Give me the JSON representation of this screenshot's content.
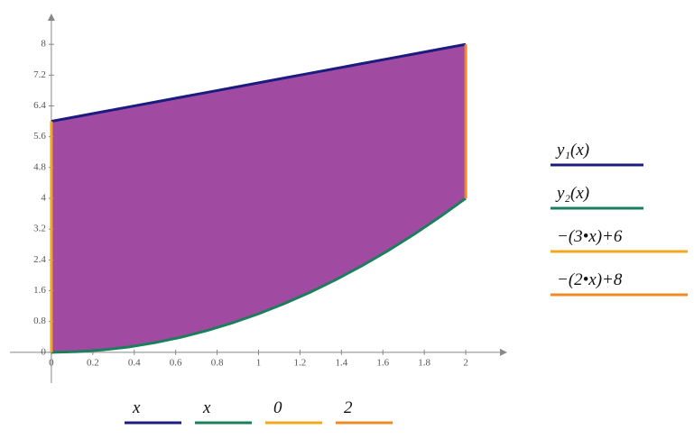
{
  "chart_data": {
    "type": "line",
    "xlim": [
      -0.2,
      2.2
    ],
    "ylim": [
      -0.8,
      8.8
    ],
    "xticks": [
      0,
      0.2,
      0.4,
      0.6,
      0.8,
      1,
      1.2,
      1.4,
      1.6,
      1.8,
      2
    ],
    "yticks": [
      0,
      0.8,
      1.6,
      2.4,
      3.2,
      4,
      4.8,
      5.6,
      6.4,
      7.2,
      8
    ],
    "fill_color": "#a14aa2",
    "series": [
      {
        "name": "y₁(x)",
        "x_name": "x",
        "color": "#1c1c80",
        "x": [
          0,
          0.125,
          0.25,
          0.375,
          0.5,
          0.625,
          0.75,
          0.875,
          1,
          1.125,
          1.25,
          1.375,
          1.5,
          1.625,
          1.75,
          1.875,
          2
        ],
        "values": [
          6,
          6.125,
          6.25,
          6.375,
          6.5,
          6.625,
          6.75,
          6.875,
          7,
          7.125,
          7.25,
          7.375,
          7.5,
          7.625,
          7.75,
          7.875,
          8
        ]
      },
      {
        "name": "y₂(x)",
        "x_name": "x",
        "color": "#1a7f5a",
        "x": [
          0,
          0.125,
          0.25,
          0.375,
          0.5,
          0.625,
          0.75,
          0.875,
          1,
          1.125,
          1.25,
          1.375,
          1.5,
          1.625,
          1.75,
          1.875,
          2
        ],
        "values": [
          0,
          0.015625,
          0.0625,
          0.140625,
          0.25,
          0.390625,
          0.5625,
          0.765625,
          1,
          1.265625,
          1.5625,
          1.890625,
          2.25,
          2.640625,
          3.0625,
          3.515625,
          4
        ]
      },
      {
        "name": "−(3•x)+6",
        "x_name": "0",
        "color": "#f2a81d",
        "x": [
          0,
          0
        ],
        "values": [
          0,
          6
        ]
      },
      {
        "name": "−(2•x)+8",
        "x_name": "2",
        "color": "#f08a24",
        "x": [
          2,
          2
        ],
        "values": [
          4,
          8
        ]
      }
    ]
  }
}
